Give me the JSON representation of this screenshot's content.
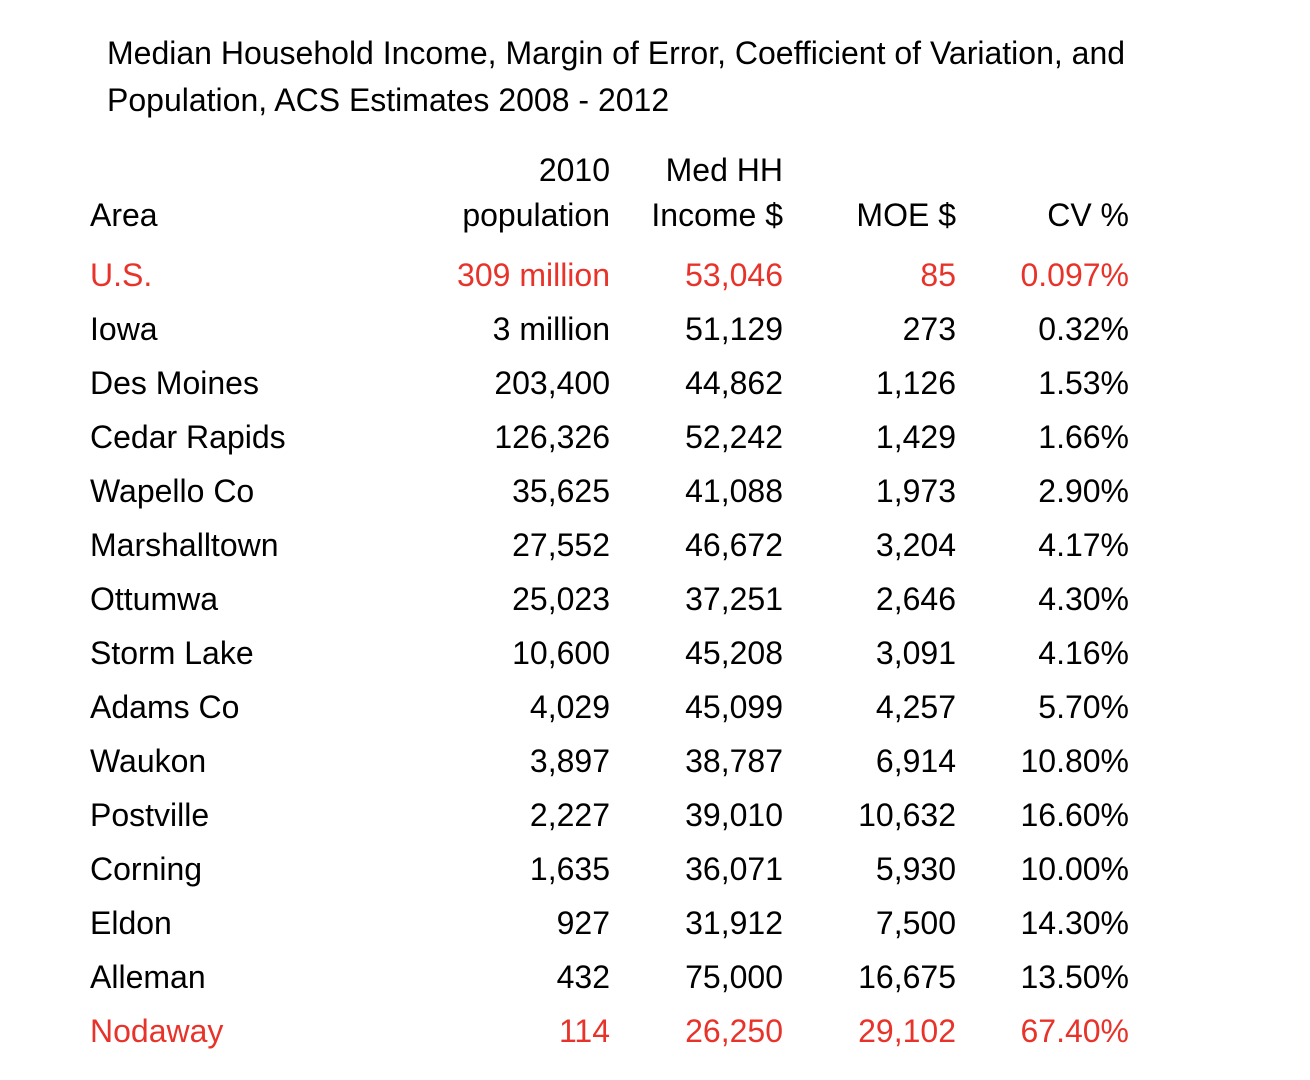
{
  "title": "Median Household Income, Margin of Error, Coefficient of Variation, and Population, ACS Estimates 2008 - 2012",
  "highlight_color": "#e8332a",
  "table": {
    "headers": {
      "area": "Area",
      "population_line1": "2010",
      "population_line2": "population",
      "income_line1": "Med HH",
      "income_line2": "Income $",
      "moe": "MOE $",
      "cv": "CV %"
    },
    "rows": [
      {
        "area": "U.S.",
        "population": "309 million",
        "income": "53,046",
        "moe": "85",
        "cv": "0.097%",
        "highlighted": true
      },
      {
        "area": "Iowa",
        "population": "3 million",
        "income": "51,129",
        "moe": "273",
        "cv": "0.32%",
        "highlighted": false
      },
      {
        "area": "Des Moines",
        "population": "203,400",
        "income": "44,862",
        "moe": "1,126",
        "cv": "1.53%",
        "highlighted": false
      },
      {
        "area": "Cedar Rapids",
        "population": "126,326",
        "income": "52,242",
        "moe": "1,429",
        "cv": "1.66%",
        "highlighted": false
      },
      {
        "area": "Wapello Co",
        "population": "35,625",
        "income": "41,088",
        "moe": "1,973",
        "cv": "2.90%",
        "highlighted": false
      },
      {
        "area": "Marshalltown",
        "population": "27,552",
        "income": "46,672",
        "moe": "3,204",
        "cv": "4.17%",
        "highlighted": false
      },
      {
        "area": "Ottumwa",
        "population": "25,023",
        "income": "37,251",
        "moe": "2,646",
        "cv": "4.30%",
        "highlighted": false
      },
      {
        "area": "Storm Lake",
        "population": "10,600",
        "income": "45,208",
        "moe": "3,091",
        "cv": "4.16%",
        "highlighted": false
      },
      {
        "area": "Adams Co",
        "population": "4,029",
        "income": "45,099",
        "moe": "4,257",
        "cv": "5.70%",
        "highlighted": false
      },
      {
        "area": "Waukon",
        "population": "3,897",
        "income": "38,787",
        "moe": "6,914",
        "cv": "10.80%",
        "highlighted": false
      },
      {
        "area": "Postville",
        "population": "2,227",
        "income": "39,010",
        "moe": "10,632",
        "cv": "16.60%",
        "highlighted": false
      },
      {
        "area": "Corning",
        "population": "1,635",
        "income": "36,071",
        "moe": "5,930",
        "cv": "10.00%",
        "highlighted": false
      },
      {
        "area": "Eldon",
        "population": "927",
        "income": "31,912",
        "moe": "7,500",
        "cv": "14.30%",
        "highlighted": false
      },
      {
        "area": "Alleman",
        "population": "432",
        "income": "75,000",
        "moe": "16,675",
        "cv": "13.50%",
        "highlighted": false
      },
      {
        "area": "Nodaway",
        "population": "114",
        "income": "26,250",
        "moe": "29,102",
        "cv": "67.40%",
        "highlighted": true
      }
    ]
  }
}
